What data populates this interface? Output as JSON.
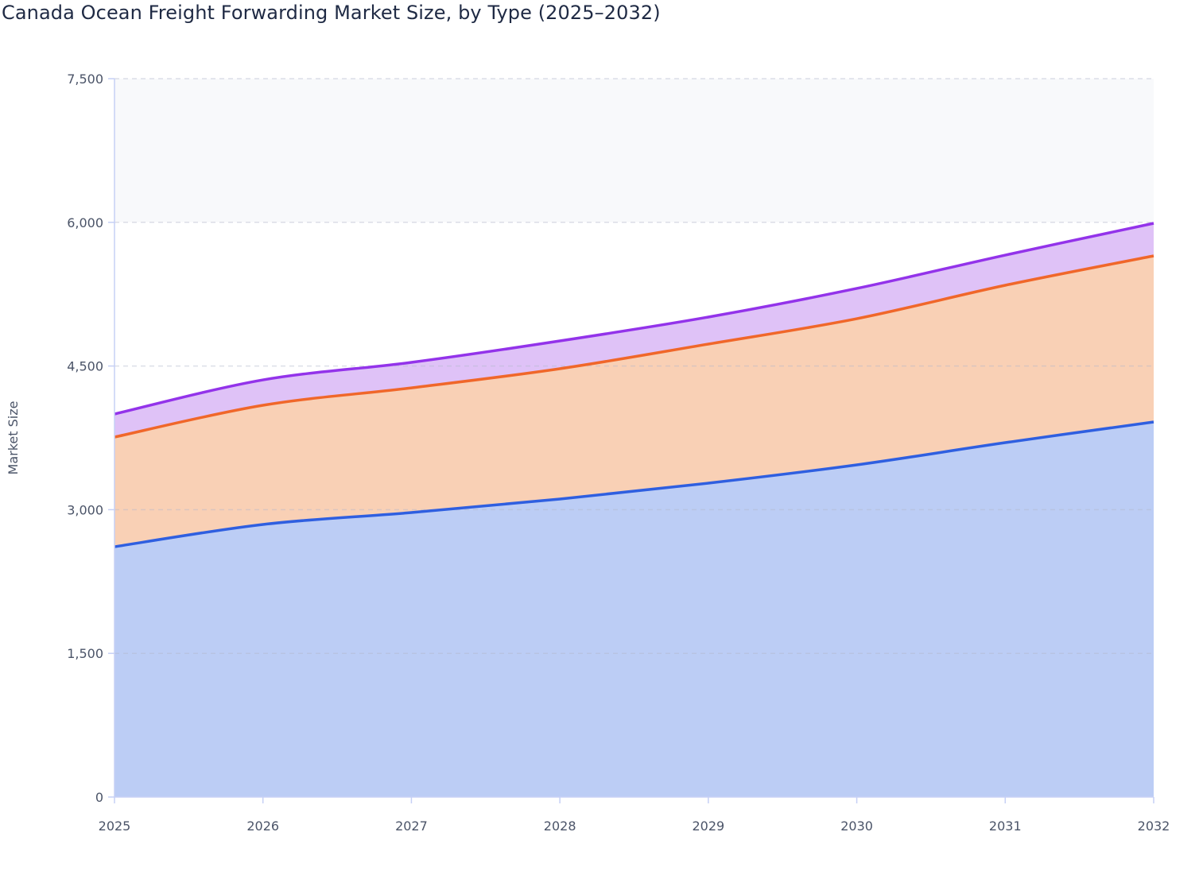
{
  "chart_data": {
    "type": "area",
    "stacked": true,
    "title": "Canada Ocean Freight Forwarding Market Size, by Type (2025–2032)",
    "xlabel": "",
    "ylabel": "Market Size",
    "x": [
      "2025",
      "2026",
      "2027",
      "2028",
      "2029",
      "2030",
      "2031",
      "2032"
    ],
    "ylim": [
      0,
      7500
    ],
    "yticks": [
      "0",
      "1,500",
      "3,000",
      "4,500",
      "6,000",
      "7,500"
    ],
    "ytick_values": [
      0,
      1500,
      3000,
      4500,
      6000,
      7500
    ],
    "grid": true,
    "legend": "none",
    "shaded_band": [
      6000,
      7500
    ],
    "series": [
      {
        "values": [
          2613,
          2846,
          2970,
          3111,
          3277,
          3468,
          3700,
          3916
        ],
        "line_color": "#2f5fe0",
        "fill_color": "#bccdf5"
      },
      {
        "values": [
          1145,
          1244,
          1302,
          1361,
          1452,
          1526,
          1643,
          1734
        ],
        "line_color": "#f0672a",
        "fill_color": "#f9d0b5"
      },
      {
        "values": [
          241,
          265,
          266,
          290,
          282,
          316,
          315,
          340
        ],
        "line_color": "#9333ea",
        "fill_color": "#dfc2f7"
      }
    ]
  }
}
